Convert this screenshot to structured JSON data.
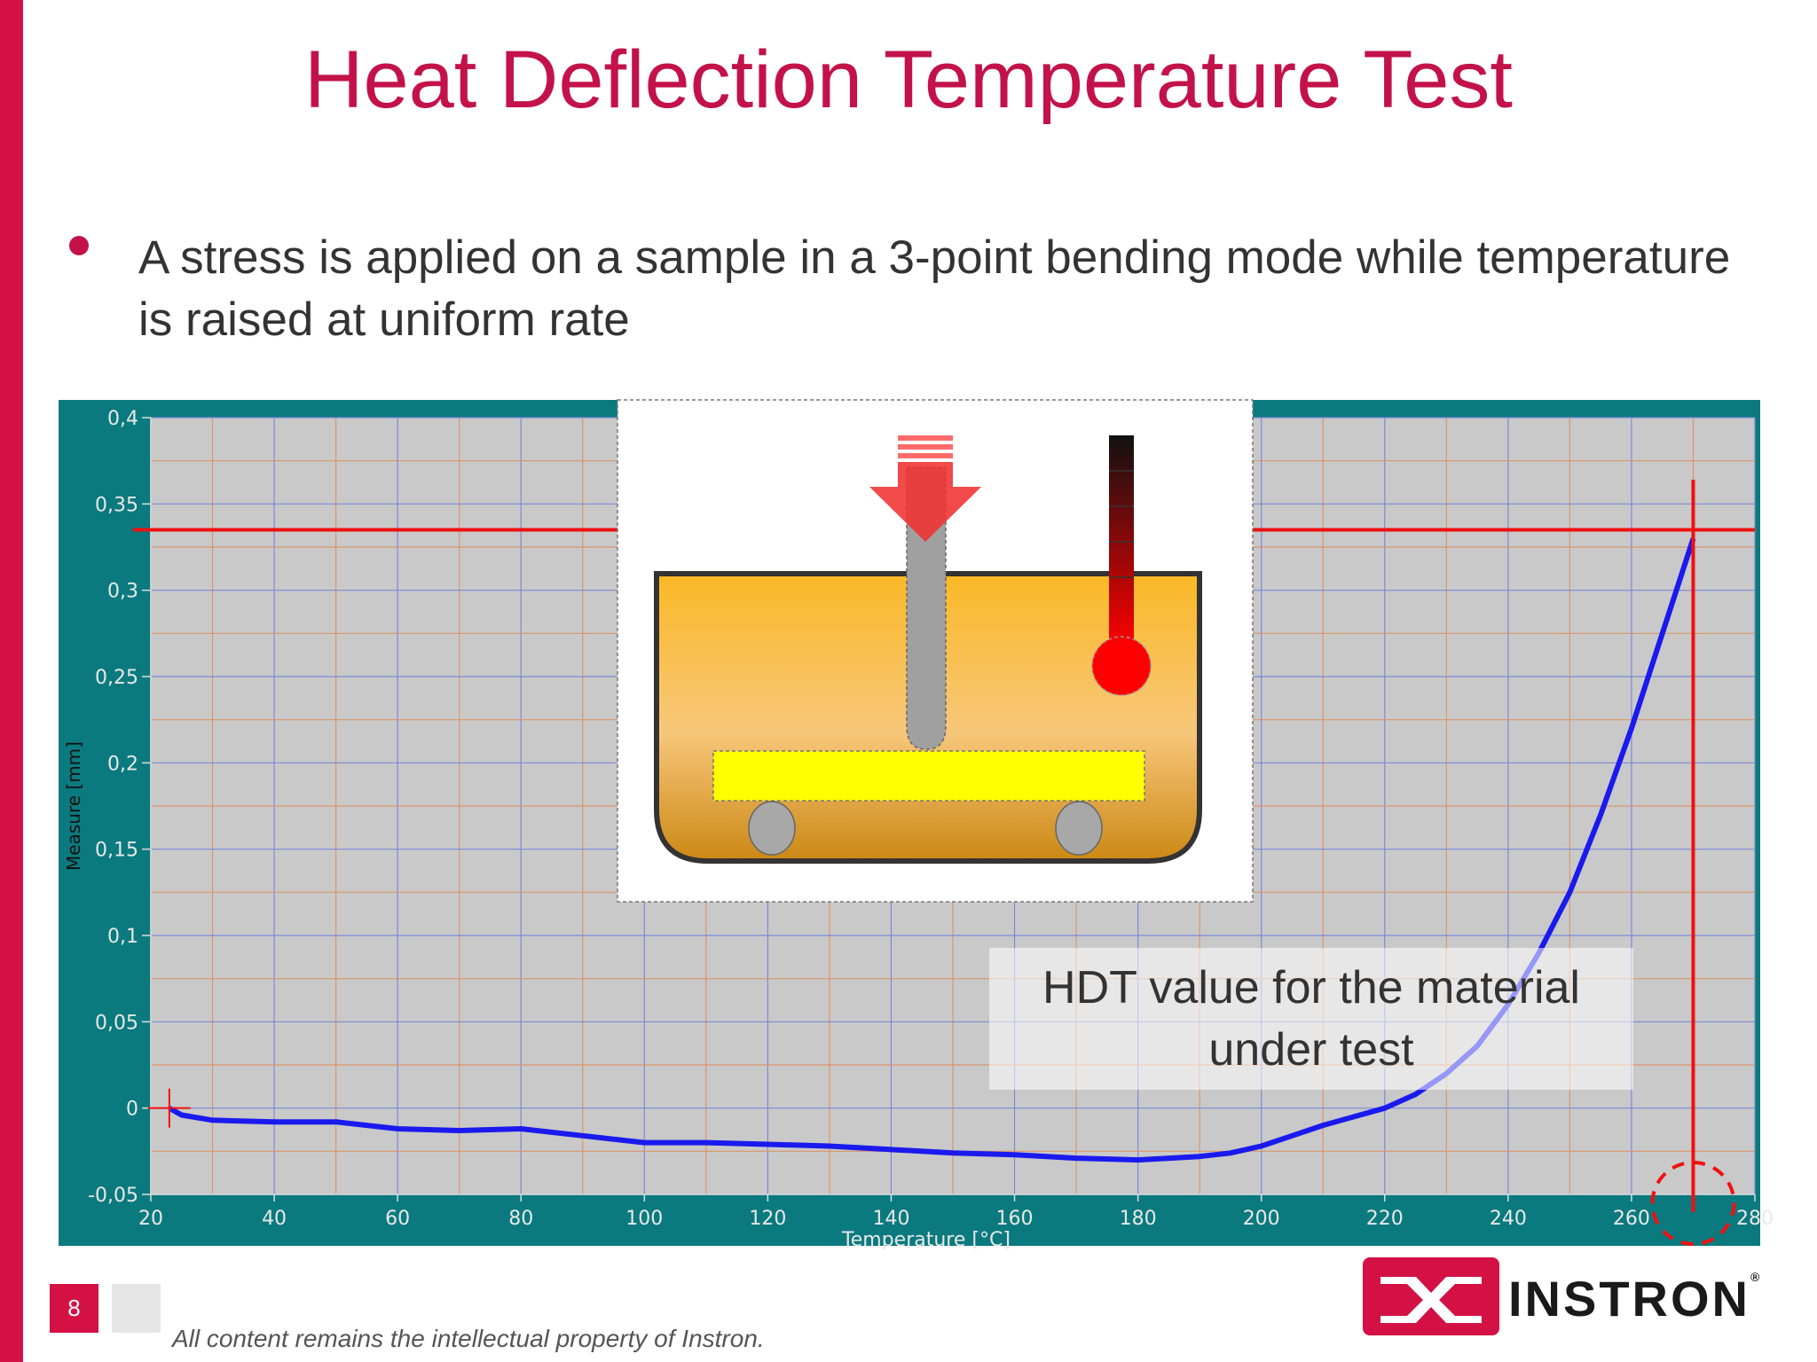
{
  "slide": {
    "title": "Heat Deflection Temperature Test",
    "bullet": "A stress is applied on a sample in a 3-point bending mode while temperature is raised at uniform rate",
    "page_number": "8",
    "footer": "All content remains the intellectual property of Instron.",
    "logo_text": "INSTRON",
    "logo_registered": "®",
    "accent_color": "#d31145",
    "title_color": "#c3124a"
  },
  "chart_data": {
    "type": "line",
    "xlabel": "Temperature [°C]",
    "ylabel": "Measure [mm]",
    "xlim": [
      20,
      280
    ],
    "ylim": [
      -0.05,
      0.4
    ],
    "x_ticks": [
      20,
      40,
      60,
      80,
      100,
      120,
      140,
      160,
      180,
      200,
      220,
      240,
      260,
      280
    ],
    "x_tick_labels": [
      "20",
      "40",
      "60",
      "80",
      "100",
      "120",
      "140",
      "160",
      "180",
      "200",
      "220",
      "240",
      "260",
      "280"
    ],
    "y_ticks": [
      -0.05,
      0,
      0.05,
      0.1,
      0.15,
      0.2,
      0.25,
      0.3,
      0.35,
      0.4
    ],
    "y_tick_labels": [
      "-0,05",
      "0",
      "0,05",
      "0,1",
      "0,15",
      "0,2",
      "0,25",
      "0,3",
      "0,35",
      "0,4"
    ],
    "grid": true,
    "plot_background": "#c9c9c9",
    "frame_color": "#0b7a7e",
    "series": [
      {
        "color": "#1a1aee",
        "x": [
          23,
          25,
          30,
          40,
          50,
          60,
          70,
          80,
          90,
          100,
          110,
          120,
          130,
          140,
          150,
          160,
          170,
          180,
          190,
          195,
          200,
          205,
          210,
          215,
          220,
          225,
          230,
          235,
          240,
          245,
          250,
          255,
          260,
          265,
          270
        ],
        "y": [
          0,
          -0.004,
          -0.007,
          -0.008,
          -0.008,
          -0.012,
          -0.013,
          -0.012,
          -0.016,
          -0.02,
          -0.02,
          -0.021,
          -0.022,
          -0.024,
          -0.026,
          -0.027,
          -0.029,
          -0.03,
          -0.028,
          -0.026,
          -0.022,
          -0.016,
          -0.01,
          -0.005,
          0,
          0.008,
          0.02,
          0.036,
          0.06,
          0.09,
          0.125,
          0.17,
          0.22,
          0.275,
          0.33
        ]
      }
    ],
    "annotations": {
      "hdt_threshold_y": 0.335,
      "hdt_temperature_x": 270,
      "hdt_label": "HDT value for the material under test",
      "start_marker": {
        "x": 23,
        "y": 0
      }
    }
  }
}
